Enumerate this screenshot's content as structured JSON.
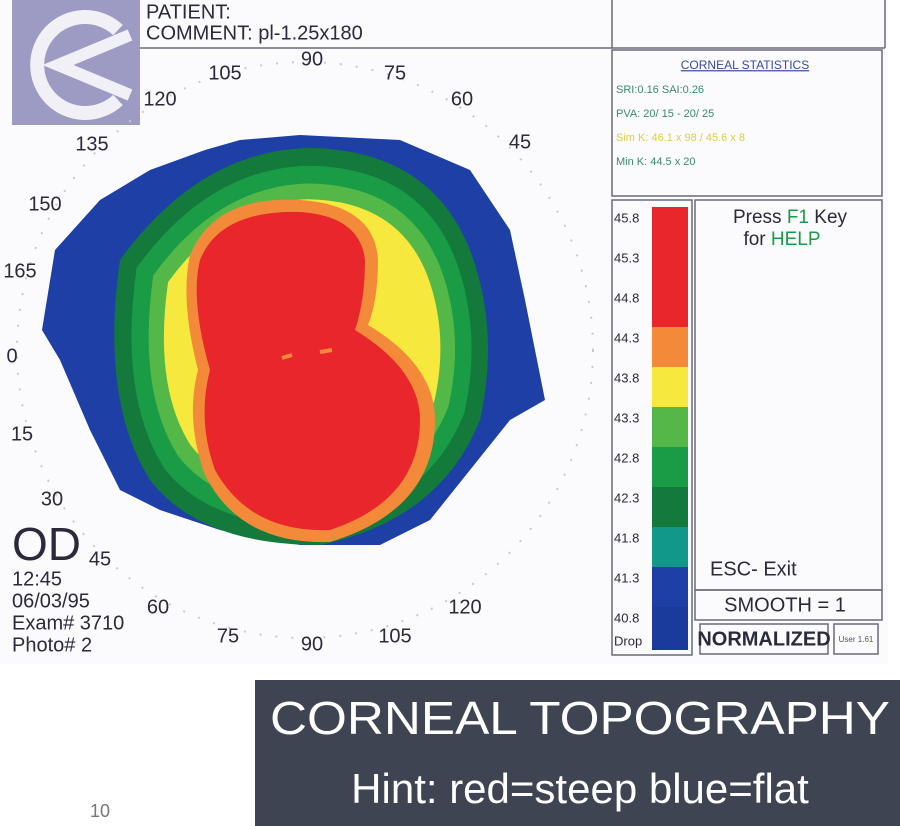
{
  "header": {
    "patient": "PATIENT:",
    "comment": "COMMENT: pl-1.25x180"
  },
  "angle_labels": [
    "105",
    "90",
    "75",
    "120",
    "60",
    "135",
    "45",
    "150",
    "165",
    "0",
    "15",
    "30",
    "45",
    "60",
    "75",
    "90",
    "105",
    "120"
  ],
  "statistics": {
    "title": "CORNEAL STATISTICS",
    "lines": [
      "SRI:0.16 SAI:0.26",
      "PVA: 20/ 15 - 20/ 25",
      "Sim K: 46.1 x 98 / 45.6 x 8",
      "Min K: 44.5 x 20"
    ]
  },
  "scale": {
    "entries": [
      {
        "label": "45.8",
        "color": "#e8262b"
      },
      {
        "label": "45.3",
        "color": "#e8262b"
      },
      {
        "label": "44.8",
        "color": "#e8262b"
      },
      {
        "label": "44.3",
        "color": "#f28a3a"
      },
      {
        "label": "43.8",
        "color": "#f6e83c"
      },
      {
        "label": "43.3",
        "color": "#53b848"
      },
      {
        "label": "42.8",
        "color": "#1a9b45"
      },
      {
        "label": "42.3",
        "color": "#137a3c"
      },
      {
        "label": "41.8",
        "color": "#11988a"
      },
      {
        "label": "41.3",
        "color": "#1e3fa6"
      },
      {
        "label": "40.8",
        "color": "#1b3b9c"
      }
    ],
    "drop": "Drop"
  },
  "help": {
    "press": "Press ",
    "key": "F1",
    "key_suffix": " Key",
    "for": "for ",
    "help": "HELP"
  },
  "exit": "ESC- Exit",
  "smooth": "SMOOTH = 1",
  "normalized": "NORMALIZED",
  "user": "User 1.61",
  "exam": {
    "eye": "OD",
    "time": "12:45",
    "date": "06/03/95",
    "exam": "Exam# 3710",
    "photo": "Photo# 2"
  },
  "caption": {
    "title": "CORNEAL TOPOGRAPHY",
    "hint": "Hint: red=steep blue=flat"
  },
  "page_number": "10"
}
